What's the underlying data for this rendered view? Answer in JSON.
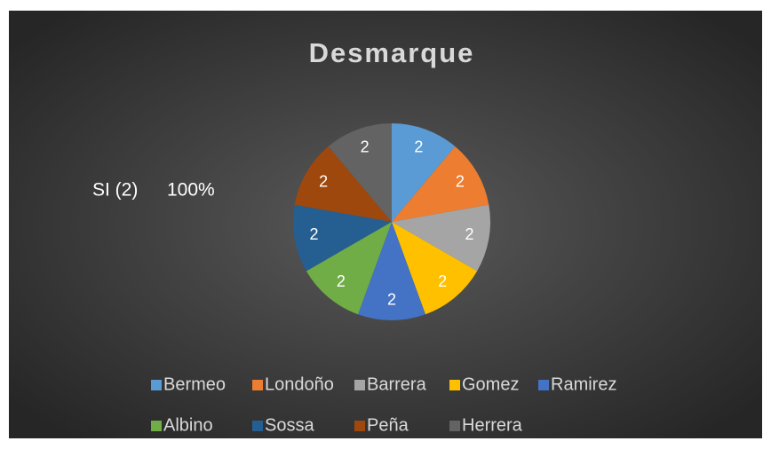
{
  "chart_data": {
    "type": "pie",
    "title": "Desmarque",
    "annotations": [
      "SI (2)",
      "100%"
    ],
    "categories": [
      "Bermeo",
      "Londoño",
      "Barrera",
      "Gomez",
      "Ramirez",
      "Albino",
      "Sossa",
      "Peña",
      "Herrera"
    ],
    "values": [
      2,
      2,
      2,
      2,
      2,
      2,
      2,
      2,
      2
    ],
    "colors": [
      "#5b9bd5",
      "#ed7d31",
      "#a5a5a5",
      "#ffc000",
      "#4472c4",
      "#70ad47",
      "#255e91",
      "#9e480e",
      "#636363"
    ],
    "legend": "bottom"
  }
}
